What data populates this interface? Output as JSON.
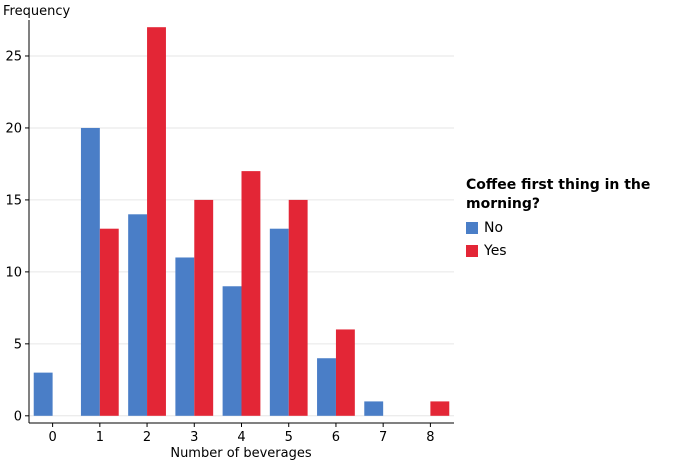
{
  "chart_data": {
    "type": "bar",
    "title": "",
    "xlabel": "Number of beverages",
    "ylabel": "Frequency",
    "categories": [
      "0",
      "1",
      "2",
      "3",
      "4",
      "5",
      "6",
      "7",
      "8"
    ],
    "x_tick_labels": [
      "0",
      "1",
      "2",
      "3",
      "4",
      "5",
      "6",
      "7",
      "8"
    ],
    "y_tick_labels": [
      "0",
      "5",
      "10",
      "15",
      "20",
      "25"
    ],
    "y_ticks": [
      0,
      5,
      10,
      15,
      20,
      25
    ],
    "ylim": [
      -0.5,
      27.5
    ],
    "grid": true,
    "legend_placement": "right",
    "legend_title": "Coffee first thing in the morning?",
    "series": [
      {
        "name": "No",
        "color": "#4a7ec7",
        "values": [
          3,
          20,
          14,
          11,
          9,
          13,
          4,
          1,
          0
        ]
      },
      {
        "name": "Yes",
        "color": "#e32636",
        "values": [
          0,
          13,
          27,
          15,
          17,
          15,
          6,
          0,
          1
        ]
      }
    ]
  }
}
